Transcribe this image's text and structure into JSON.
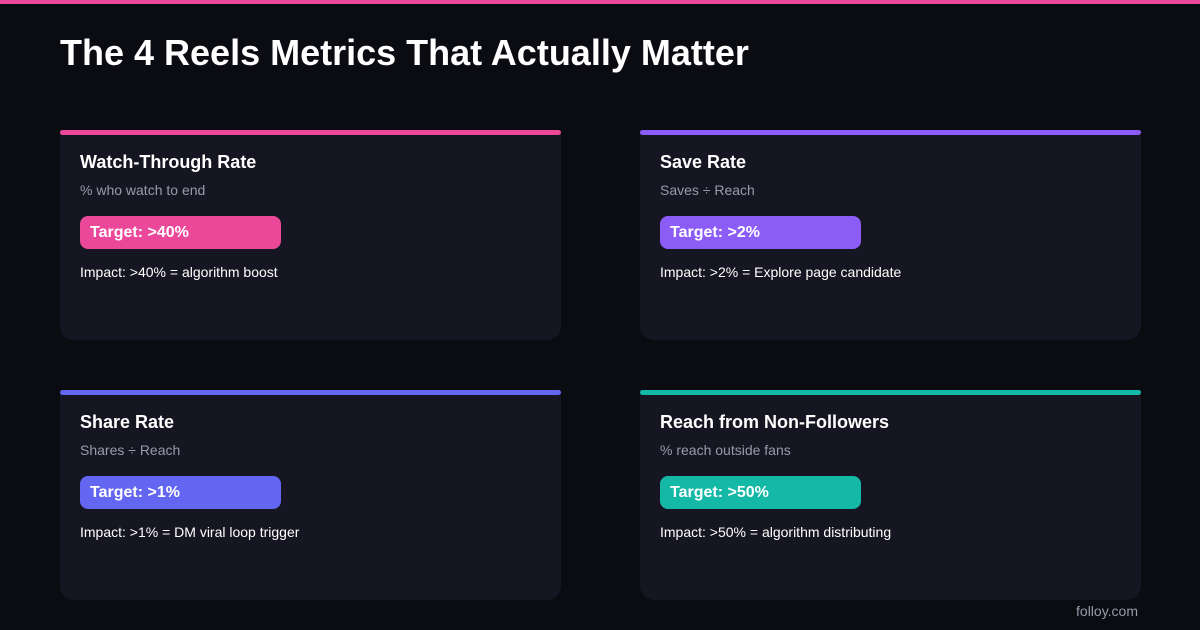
{
  "header": {
    "title": "The 4 Reels Metrics That Actually Matter"
  },
  "cards": [
    {
      "title": "Watch-Through Rate",
      "subtitle": "% who watch to end",
      "target": "Target: >40%",
      "impact": "Impact: >40% = algorithm boost",
      "color": "#ec4899"
    },
    {
      "title": "Save Rate",
      "subtitle": "Saves ÷ Reach",
      "target": "Target: >2%",
      "impact": "Impact: >2% = Explore page candidate",
      "color": "#8b5cf6"
    },
    {
      "title": "Share Rate",
      "subtitle": "Shares ÷ Reach",
      "target": "Target: >1%",
      "impact": "Impact: >1% = DM viral loop trigger",
      "color": "#6366f1"
    },
    {
      "title": "Reach from Non-Followers",
      "subtitle": "% reach outside fans",
      "target": "Target: >50%",
      "impact": "Impact: >50% = algorithm distributing",
      "color": "#14b8a6"
    }
  ],
  "footer": {
    "brand": "folloy.com"
  }
}
